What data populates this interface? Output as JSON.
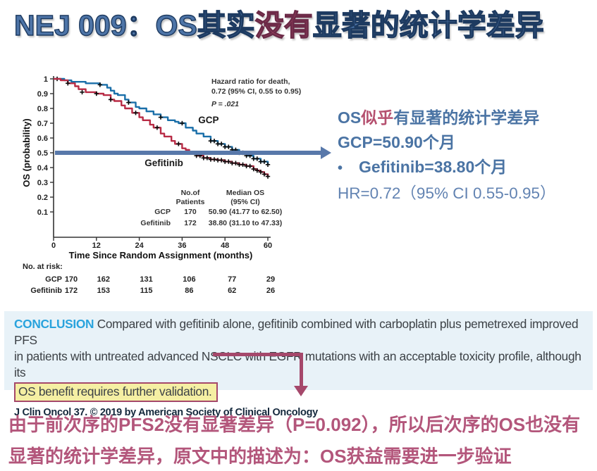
{
  "title": {
    "pre": "NEJ 009：OS其实",
    "em": "没有",
    "post": "显著的统计学差异"
  },
  "right_notes": {
    "line1_pre": "OS",
    "line1_em": "似乎",
    "line1_post": "有显著的统计学差异",
    "line2": "GCP=50.90个月",
    "bullet": "•",
    "line3": "Gefitinib=38.80个月",
    "line4": "HR=0.72（95% CI 0.55-0.95）"
  },
  "conclusion": {
    "label": "CONCLUSION",
    "line1": "Compared with gefitinib alone, gefitinib combined with carboplatin plus pemetrexed improved PFS",
    "line2": "in patients with untreated advanced NSCLC with EGFR mutations with an acceptable toxicity profile, although its",
    "highlight": "OS benefit requires further validation.",
    "citation": "J Clin Oncol 37. © 2019 by American Society of Clinical Oncology"
  },
  "bottom_note": {
    "line1": "由于前次序的PFS2没有显著差异（P=0.092），所以后次序的OS也没有",
    "line2": "显著的统计学差异，原文中的描述为：OS获益需要进一步验证"
  },
  "colors": {
    "title_blue": "#4d74a7",
    "title_red": "#b5506f",
    "gcp_curve": "#1a6fa9",
    "gefitinib_curve": "#b82b45",
    "median_arrow_blue": "#5878aa",
    "conclusion_bg": "#e8f2f8",
    "conclusion_label_blue": "#29a3dd",
    "highlight_yellow": "#f5efa3",
    "connector_maroon": "#a5486b",
    "bottom_text_maroon": "#b3567b"
  },
  "chart_data": {
    "type": "line",
    "subtype": "kaplan-meier-step",
    "xlabel": "Time Since Random Assignment (months)",
    "ylabel": "OS (probability)",
    "xlim": [
      0,
      60
    ],
    "ylim": [
      0,
      1
    ],
    "xticks": [
      0,
      12,
      24,
      36,
      48,
      60
    ],
    "yticks": [
      0.1,
      0.2,
      0.3,
      0.4,
      0.5,
      0.6,
      0.7,
      0.8,
      0.9,
      1
    ],
    "grid": false,
    "annotation": {
      "lines": [
        "Hazard ratio for death,",
        "0.72 (95% CI, 0.55 to 0.95)",
        "P = .021"
      ]
    },
    "series": [
      {
        "name": "GCP",
        "color": "#1a6fa9",
        "label_at": [
          40.5,
          0.7
        ],
        "x": [
          0,
          2,
          3,
          5,
          9,
          12,
          13,
          15,
          16,
          17,
          18,
          20,
          21,
          23,
          24,
          26,
          28,
          30,
          32,
          34,
          35,
          37,
          39,
          40,
          42,
          44,
          46,
          48,
          50,
          52,
          54,
          56,
          58,
          60
        ],
        "y": [
          1.0,
          1.0,
          0.99,
          0.98,
          0.97,
          0.97,
          0.96,
          0.94,
          0.92,
          0.9,
          0.89,
          0.86,
          0.84,
          0.81,
          0.8,
          0.78,
          0.76,
          0.74,
          0.72,
          0.71,
          0.7,
          0.67,
          0.65,
          0.63,
          0.61,
          0.58,
          0.56,
          0.54,
          0.52,
          0.5,
          0.48,
          0.46,
          0.44,
          0.42
        ],
        "censors": [
          [
            1,
            1.0
          ],
          [
            13,
            0.96
          ],
          [
            21,
            0.84
          ],
          [
            30,
            0.74
          ],
          [
            36,
            0.7
          ],
          [
            44,
            0.58
          ],
          [
            45,
            0.58
          ],
          [
            46,
            0.56
          ],
          [
            47,
            0.56
          ],
          [
            48,
            0.54
          ],
          [
            49,
            0.54
          ],
          [
            50,
            0.52
          ],
          [
            51,
            0.52
          ],
          [
            52,
            0.5
          ],
          [
            53,
            0.5
          ],
          [
            54,
            0.48
          ],
          [
            55,
            0.48
          ],
          [
            56,
            0.46
          ],
          [
            57,
            0.46
          ],
          [
            58,
            0.44
          ],
          [
            59,
            0.44
          ],
          [
            60,
            0.42
          ]
        ]
      },
      {
        "name": "Gefitinib",
        "color": "#b82b45",
        "label_at": [
          25.5,
          0.41
        ],
        "x": [
          0,
          2,
          4,
          6,
          7,
          9,
          12,
          14,
          16,
          17,
          19,
          20,
          22,
          24,
          25,
          27,
          28,
          30,
          31,
          33,
          34,
          36,
          37,
          38,
          40,
          42,
          44,
          46,
          48,
          50,
          52,
          54,
          56,
          57,
          58,
          59,
          60
        ],
        "y": [
          1.0,
          0.99,
          0.97,
          0.95,
          0.93,
          0.91,
          0.9,
          0.89,
          0.86,
          0.85,
          0.82,
          0.8,
          0.77,
          0.74,
          0.72,
          0.69,
          0.67,
          0.63,
          0.61,
          0.58,
          0.56,
          0.53,
          0.52,
          0.5,
          0.48,
          0.465,
          0.455,
          0.45,
          0.44,
          0.43,
          0.42,
          0.41,
          0.39,
          0.38,
          0.37,
          0.355,
          0.34
        ],
        "censors": [
          [
            4,
            0.97
          ],
          [
            8,
            0.91
          ],
          [
            12,
            0.9
          ],
          [
            16,
            0.86
          ],
          [
            23,
            0.77
          ],
          [
            29,
            0.67
          ],
          [
            35,
            0.56
          ],
          [
            40,
            0.48
          ],
          [
            41,
            0.48
          ],
          [
            42,
            0.465
          ],
          [
            43,
            0.465
          ],
          [
            44,
            0.455
          ],
          [
            45,
            0.455
          ],
          [
            46,
            0.45
          ],
          [
            47,
            0.45
          ],
          [
            48,
            0.44
          ],
          [
            49,
            0.44
          ],
          [
            50,
            0.43
          ],
          [
            51,
            0.43
          ],
          [
            52,
            0.42
          ],
          [
            53,
            0.42
          ],
          [
            54,
            0.41
          ],
          [
            55,
            0.41
          ],
          [
            56,
            0.39
          ],
          [
            57,
            0.38
          ],
          [
            58,
            0.37
          ],
          [
            59,
            0.355
          ],
          [
            60,
            0.34
          ]
        ]
      }
    ],
    "inner_table": {
      "headers": [
        [
          "No.of",
          "Patients"
        ],
        [
          "Median OS",
          "(95% CI)"
        ]
      ],
      "rows": [
        {
          "name": "GCP",
          "patients": "170",
          "median": "50.90 (41.77 to 62.50)"
        },
        {
          "name": "Gefitinib",
          "patients": "172",
          "median": "38.80 (31.10 to 47.33)"
        }
      ]
    },
    "risk_table": {
      "label": "No. at risk:",
      "rows": [
        {
          "name": "GCP",
          "values": [
            170,
            162,
            131,
            106,
            77,
            29
          ]
        },
        {
          "name": "Gefitinib",
          "values": [
            172,
            153,
            115,
            86,
            62,
            26
          ]
        }
      ]
    }
  }
}
